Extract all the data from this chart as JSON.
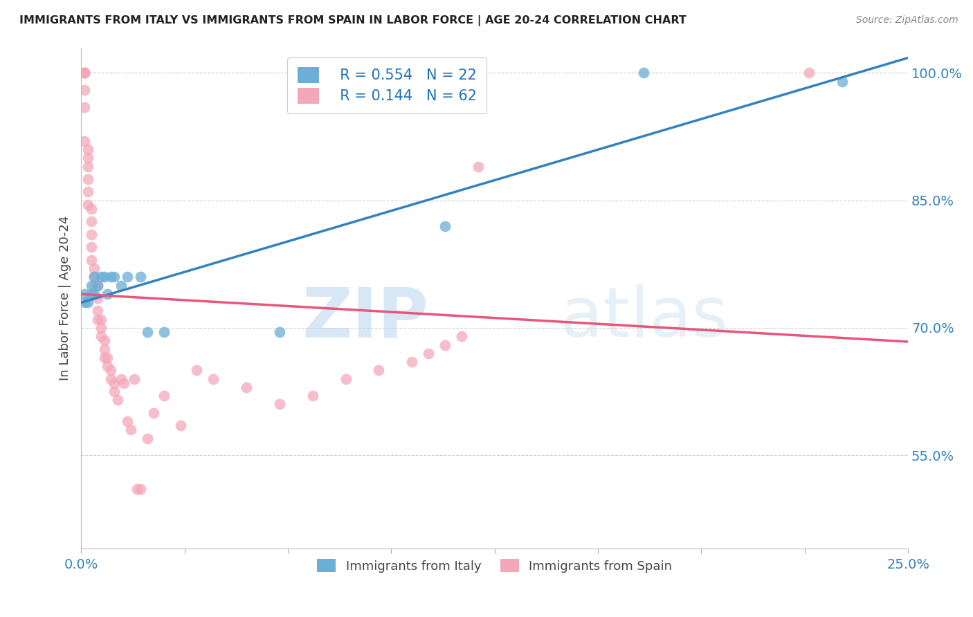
{
  "title": "IMMIGRANTS FROM ITALY VS IMMIGRANTS FROM SPAIN IN LABOR FORCE | AGE 20-24 CORRELATION CHART",
  "source": "Source: ZipAtlas.com",
  "ylabel": "In Labor Force | Age 20-24",
  "x_min": 0.0,
  "x_max": 0.25,
  "y_min": 0.44,
  "y_max": 1.03,
  "y_ticks": [
    0.55,
    0.7,
    0.85,
    1.0
  ],
  "y_tick_labels": [
    "55.0%",
    "70.0%",
    "85.0%",
    "100.0%"
  ],
  "italy_R": 0.554,
  "italy_N": 22,
  "spain_R": 0.144,
  "spain_N": 62,
  "italy_color": "#6baed6",
  "spain_color": "#f4a7b9",
  "italy_line_color": "#3182bd",
  "spain_line_color": "#e8567a",
  "legend_R_color": "#2171b5",
  "italy_x": [
    0.001,
    0.001,
    0.002,
    0.003,
    0.003,
    0.004,
    0.004,
    0.005,
    0.006,
    0.007,
    0.008,
    0.009,
    0.01,
    0.012,
    0.014,
    0.018,
    0.02,
    0.025,
    0.06,
    0.11,
    0.17,
    0.23
  ],
  "italy_y": [
    0.73,
    0.74,
    0.73,
    0.75,
    0.74,
    0.76,
    0.74,
    0.75,
    0.76,
    0.76,
    0.74,
    0.76,
    0.76,
    0.75,
    0.76,
    0.76,
    0.695,
    0.695,
    0.695,
    0.82,
    1.0,
    0.99
  ],
  "spain_x": [
    0.001,
    0.001,
    0.001,
    0.001,
    0.001,
    0.001,
    0.001,
    0.002,
    0.002,
    0.002,
    0.002,
    0.002,
    0.002,
    0.003,
    0.003,
    0.003,
    0.003,
    0.003,
    0.004,
    0.004,
    0.004,
    0.005,
    0.005,
    0.005,
    0.005,
    0.006,
    0.006,
    0.006,
    0.007,
    0.007,
    0.007,
    0.008,
    0.008,
    0.009,
    0.009,
    0.01,
    0.01,
    0.011,
    0.012,
    0.013,
    0.014,
    0.015,
    0.016,
    0.017,
    0.018,
    0.02,
    0.022,
    0.025,
    0.03,
    0.035,
    0.04,
    0.05,
    0.06,
    0.07,
    0.08,
    0.09,
    0.1,
    0.105,
    0.11,
    0.115,
    0.12,
    0.22
  ],
  "spain_y": [
    1.0,
    1.0,
    1.0,
    1.0,
    0.98,
    0.96,
    0.92,
    0.91,
    0.9,
    0.89,
    0.875,
    0.86,
    0.845,
    0.84,
    0.825,
    0.81,
    0.795,
    0.78,
    0.77,
    0.76,
    0.75,
    0.75,
    0.735,
    0.72,
    0.71,
    0.71,
    0.7,
    0.69,
    0.685,
    0.675,
    0.665,
    0.665,
    0.655,
    0.65,
    0.64,
    0.635,
    0.625,
    0.615,
    0.64,
    0.635,
    0.59,
    0.58,
    0.64,
    0.51,
    0.51,
    0.57,
    0.6,
    0.62,
    0.585,
    0.65,
    0.64,
    0.63,
    0.61,
    0.62,
    0.64,
    0.65,
    0.66,
    0.67,
    0.68,
    0.69,
    0.89,
    1.0
  ],
  "watermark_zip": "ZIP",
  "watermark_atlas": "atlas",
  "background_color": "#ffffff",
  "grid_color": "#d0d0d0",
  "axis_label_color": "#3182bd",
  "tick_color": "#aaaaaa",
  "title_color": "#222222"
}
